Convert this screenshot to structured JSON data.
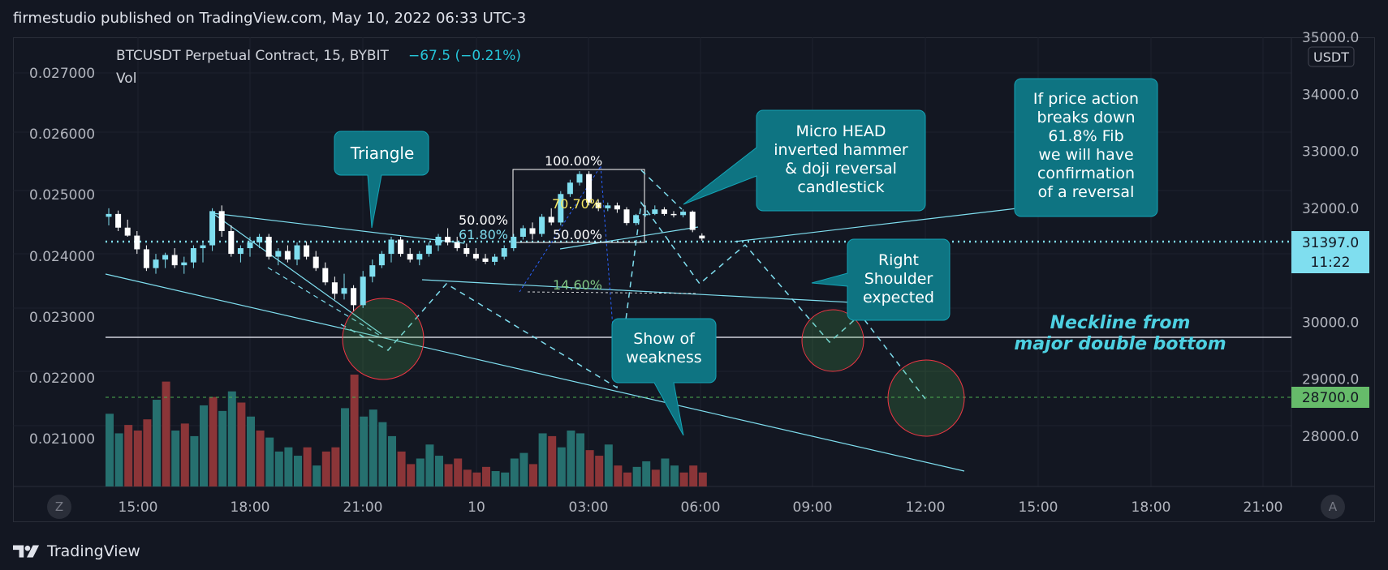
{
  "header": {
    "published": "firmestudio published on TradingView.com, May 10, 2022 06:33 UTC-3"
  },
  "legend": {
    "symbol": "BTCUSDT Perpetual Contract, 15, BYBIT",
    "change": "−67.5 (−0.21%)",
    "vol": "Vol"
  },
  "left_axis": {
    "ticks": [
      "0.027000",
      "0.026000",
      "0.025000",
      "0.024000",
      "0.023000",
      "0.022000",
      "0.021000"
    ]
  },
  "right_axis": {
    "currency": "USDT",
    "ticks": [
      "35000.0",
      "34000.0",
      "33000.0",
      "32000.0",
      "30000.0",
      "29000.0",
      "28000.0"
    ],
    "last_price": "31397.0",
    "countdown": "11:22",
    "target_price": "28700.0"
  },
  "time_axis": {
    "labels": [
      "15:00",
      "18:00",
      "21:00",
      "10",
      "03:00",
      "06:00",
      "09:00",
      "12:00",
      "15:00",
      "18:00",
      "21:00"
    ]
  },
  "fib": {
    "l100": "100.00%",
    "l70": "70.70%",
    "l50a": "50.00%",
    "l618": "61.80%",
    "l50b": "50.00%",
    "l146": "14.60%"
  },
  "callouts": {
    "triangle": "Triangle",
    "micro_head": [
      "Micro HEAD",
      "inverted hammer",
      "& doji reversal",
      "candlestick"
    ],
    "if_price": [
      "If price action",
      "breaks down",
      "61.8% Fib",
      "we will have",
      "confirmation",
      "of a reversal"
    ],
    "right_shoulder": [
      "Right",
      "Shoulder",
      "expected"
    ],
    "show_weakness": [
      "Show of",
      "weakness"
    ],
    "neckline": [
      "Neckline from",
      "major double bottom"
    ]
  },
  "buttons": {
    "z": "Z",
    "a": "A"
  },
  "footer": {
    "brand": "TradingView"
  },
  "colors": {
    "bg": "#131722",
    "up": "#7fdeef",
    "down": "#ffffff",
    "teal": "#0e7482",
    "vol_up": "#26706f",
    "vol_down": "#8b3538"
  },
  "chart_data": {
    "type": "candlestick",
    "symbol": "BTCUSDT",
    "timeframe": "15",
    "y_right_range": [
      27300,
      35000
    ],
    "candles": [
      {
        "o": 31850,
        "h": 32000,
        "l": 31700,
        "c": 31900
      },
      {
        "o": 31900,
        "h": 31960,
        "l": 31600,
        "c": 31660
      },
      {
        "o": 31660,
        "h": 31800,
        "l": 31500,
        "c": 31520
      },
      {
        "o": 31520,
        "h": 31600,
        "l": 31200,
        "c": 31280
      },
      {
        "o": 31280,
        "h": 31350,
        "l": 30900,
        "c": 30950
      },
      {
        "o": 30950,
        "h": 31200,
        "l": 30850,
        "c": 31100
      },
      {
        "o": 31100,
        "h": 31220,
        "l": 30950,
        "c": 31180
      },
      {
        "o": 31180,
        "h": 31300,
        "l": 30950,
        "c": 31000
      },
      {
        "o": 31000,
        "h": 31150,
        "l": 30850,
        "c": 31050
      },
      {
        "o": 31050,
        "h": 31350,
        "l": 30950,
        "c": 31300
      },
      {
        "o": 31300,
        "h": 31400,
        "l": 31050,
        "c": 31350
      },
      {
        "o": 31350,
        "h": 32000,
        "l": 31250,
        "c": 31950
      },
      {
        "o": 31950,
        "h": 32050,
        "l": 31500,
        "c": 31600
      },
      {
        "o": 31600,
        "h": 31700,
        "l": 31150,
        "c": 31200
      },
      {
        "o": 31200,
        "h": 31350,
        "l": 31050,
        "c": 31300
      },
      {
        "o": 31300,
        "h": 31500,
        "l": 31150,
        "c": 31400
      },
      {
        "o": 31400,
        "h": 31550,
        "l": 31300,
        "c": 31500
      },
      {
        "o": 31500,
        "h": 31550,
        "l": 31100,
        "c": 31150
      },
      {
        "o": 31150,
        "h": 31300,
        "l": 31000,
        "c": 31250
      },
      {
        "o": 31250,
        "h": 31350,
        "l": 31050,
        "c": 31100
      },
      {
        "o": 31100,
        "h": 31400,
        "l": 31000,
        "c": 31350
      },
      {
        "o": 31350,
        "h": 31420,
        "l": 31100,
        "c": 31150
      },
      {
        "o": 31150,
        "h": 31250,
        "l": 30900,
        "c": 30950
      },
      {
        "o": 30950,
        "h": 31050,
        "l": 30650,
        "c": 30700
      },
      {
        "o": 30700,
        "h": 30800,
        "l": 30400,
        "c": 30500
      },
      {
        "o": 30500,
        "h": 30850,
        "l": 30400,
        "c": 30600
      },
      {
        "o": 30600,
        "h": 30650,
        "l": 30200,
        "c": 30300
      },
      {
        "o": 30300,
        "h": 30900,
        "l": 30250,
        "c": 30800
      },
      {
        "o": 30800,
        "h": 31100,
        "l": 30700,
        "c": 31000
      },
      {
        "o": 31000,
        "h": 31250,
        "l": 30950,
        "c": 31200
      },
      {
        "o": 31200,
        "h": 31500,
        "l": 31050,
        "c": 31450
      },
      {
        "o": 31450,
        "h": 31500,
        "l": 31150,
        "c": 31200
      },
      {
        "o": 31200,
        "h": 31300,
        "l": 31050,
        "c": 31100
      },
      {
        "o": 31100,
        "h": 31250,
        "l": 31000,
        "c": 31200
      },
      {
        "o": 31200,
        "h": 31400,
        "l": 31150,
        "c": 31350
      },
      {
        "o": 31350,
        "h": 31550,
        "l": 31250,
        "c": 31500
      },
      {
        "o": 31500,
        "h": 31650,
        "l": 31350,
        "c": 31400
      },
      {
        "o": 31400,
        "h": 31500,
        "l": 31250,
        "c": 31300
      },
      {
        "o": 31300,
        "h": 31380,
        "l": 31150,
        "c": 31200
      },
      {
        "o": 31200,
        "h": 31300,
        "l": 31080,
        "c": 31120
      },
      {
        "o": 31120,
        "h": 31200,
        "l": 31020,
        "c": 31060
      },
      {
        "o": 31060,
        "h": 31200,
        "l": 31000,
        "c": 31150
      },
      {
        "o": 31150,
        "h": 31350,
        "l": 31100,
        "c": 31300
      },
      {
        "o": 31300,
        "h": 31550,
        "l": 31250,
        "c": 31500
      },
      {
        "o": 31500,
        "h": 31700,
        "l": 31450,
        "c": 31650
      },
      {
        "o": 31650,
        "h": 31750,
        "l": 31450,
        "c": 31550
      },
      {
        "o": 31550,
        "h": 31900,
        "l": 31500,
        "c": 31850
      },
      {
        "o": 31850,
        "h": 32000,
        "l": 31700,
        "c": 31750
      },
      {
        "o": 31750,
        "h": 32300,
        "l": 31700,
        "c": 32250
      },
      {
        "o": 32250,
        "h": 32500,
        "l": 32200,
        "c": 32450
      },
      {
        "o": 32450,
        "h": 32650,
        "l": 32400,
        "c": 32600
      },
      {
        "o": 32600,
        "h": 32650,
        "l": 32050,
        "c": 32100
      },
      {
        "o": 32100,
        "h": 32150,
        "l": 31950,
        "c": 32000
      },
      {
        "o": 32000,
        "h": 32100,
        "l": 31950,
        "c": 32050
      },
      {
        "o": 32050,
        "h": 32100,
        "l": 31920,
        "c": 31980
      },
      {
        "o": 31980,
        "h": 32020,
        "l": 31700,
        "c": 31740
      },
      {
        "o": 31740,
        "h": 31900,
        "l": 31700,
        "c": 31880
      },
      {
        "o": 31880,
        "h": 32050,
        "l": 31850,
        "c": 31900
      },
      {
        "o": 31900,
        "h": 32050,
        "l": 31880,
        "c": 31980
      },
      {
        "o": 31980,
        "h": 32020,
        "l": 31870,
        "c": 31900
      },
      {
        "o": 31900,
        "h": 31950,
        "l": 31840,
        "c": 31880
      },
      {
        "o": 31880,
        "h": 31980,
        "l": 31840,
        "c": 31940
      },
      {
        "o": 31940,
        "h": 31960,
        "l": 31580,
        "c": 31620
      },
      {
        "o": 31520,
        "h": 31560,
        "l": 31430,
        "c": 31470
      }
    ],
    "volume": [
      52,
      38,
      44,
      40,
      48,
      62,
      75,
      40,
      45,
      36,
      58,
      64,
      54,
      68,
      60,
      50,
      40,
      35,
      25,
      28,
      22,
      28,
      15,
      25,
      28,
      56,
      80,
      50,
      55,
      46,
      36,
      25,
      16,
      20,
      30,
      22,
      16,
      20,
      12,
      10,
      14,
      11,
      10,
      20,
      24,
      16,
      38,
      36,
      28,
      40,
      38,
      26,
      22,
      30,
      15,
      10,
      14,
      18,
      12,
      20,
      15,
      10,
      15,
      10
    ],
    "volume_up_flags": [
      1,
      1,
      0,
      0,
      0,
      1,
      0,
      1,
      0,
      1,
      1,
      0,
      1,
      1,
      0,
      1,
      0,
      1,
      1,
      1,
      1,
      0,
      1,
      0,
      0,
      1,
      0,
      1,
      1,
      1,
      1,
      0,
      0,
      1,
      1,
      1,
      0,
      0,
      0,
      0,
      0,
      1,
      1,
      1,
      1,
      0,
      1,
      0,
      1,
      1,
      1,
      0,
      0,
      1,
      0,
      0,
      1,
      1,
      0,
      1,
      1,
      0,
      0,
      0
    ],
    "last_price": 31397.0,
    "target": 28700.0,
    "neckline": 29750.0
  }
}
